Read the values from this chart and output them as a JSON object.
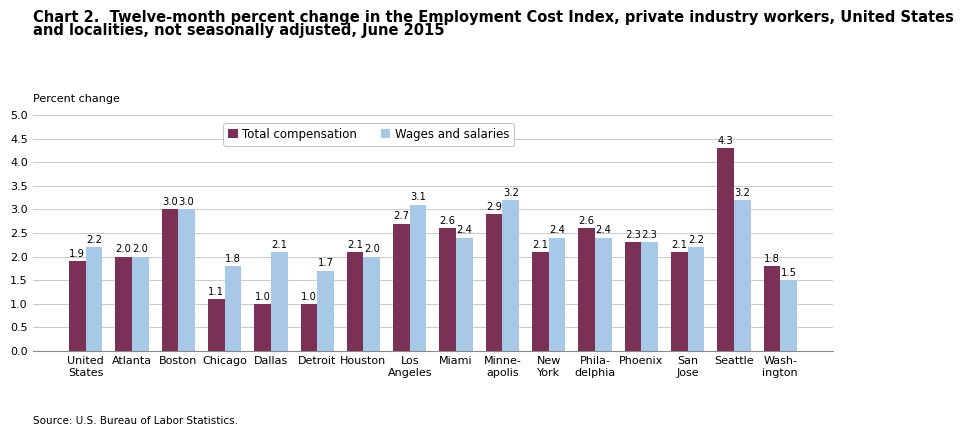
{
  "title_line1": "Chart 2.  Twelve-month percent change in the Employment Cost Index, private industry workers, United States",
  "title_line2": "and localities, not seasonally adjusted, June 2015",
  "ylabel": "Percent change",
  "source": "Source: U.S. Bureau of Labor Statistics.",
  "categories": [
    "United\nStates",
    "Atlanta",
    "Boston",
    "Chicago",
    "Dallas",
    "Detroit",
    "Houston",
    "Los\nAngeles",
    "Miami",
    "Minne-\napolis",
    "New\nYork",
    "Phila-\ndelphia",
    "Phoenix",
    "San\nJose",
    "Seattle",
    "Wash-\nington"
  ],
  "total_compensation": [
    1.9,
    2.0,
    3.0,
    1.1,
    1.0,
    1.0,
    2.1,
    2.7,
    2.6,
    2.9,
    2.1,
    2.6,
    2.3,
    2.1,
    4.3,
    1.8
  ],
  "wages_and_salaries": [
    2.2,
    2.0,
    3.0,
    1.8,
    2.1,
    1.7,
    2.0,
    3.1,
    2.4,
    3.2,
    2.4,
    2.4,
    2.3,
    2.2,
    3.2,
    1.5
  ],
  "color_total": "#7B3055",
  "color_wages": "#A8C8E8",
  "ylim": [
    0,
    5.0
  ],
  "yticks": [
    0.0,
    0.5,
    1.0,
    1.5,
    2.0,
    2.5,
    3.0,
    3.5,
    4.0,
    4.5,
    5.0
  ],
  "legend_labels": [
    "Total compensation",
    "Wages and salaries"
  ],
  "bar_width": 0.36,
  "title_fontsize": 10.5,
  "tick_fontsize": 8,
  "value_fontsize": 7.2,
  "legend_fontsize": 8.5,
  "source_fontsize": 7.5,
  "ylabel_fontsize": 8
}
